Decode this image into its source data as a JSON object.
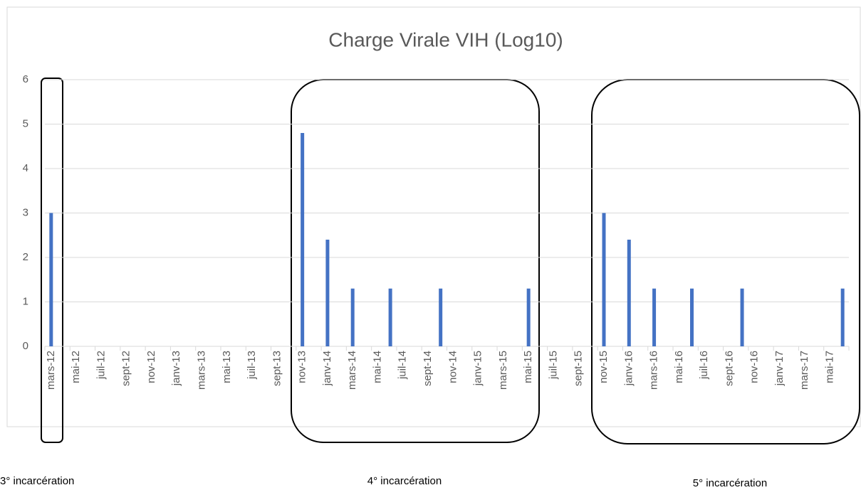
{
  "chart_data": {
    "type": "bar",
    "title": "Charge Virale VIH (Log10)",
    "categories": [
      "mars-12",
      null,
      "mai-12",
      null,
      "juil-12",
      null,
      "sept-12",
      null,
      "nov-12",
      null,
      "janv-13",
      null,
      "mars-13",
      null,
      "mai-13",
      null,
      "juil-13",
      null,
      "sept-13",
      null,
      "nov-13",
      null,
      "janv-14",
      null,
      "mars-14",
      null,
      "mai-14",
      null,
      "juil-14",
      null,
      "sept-14",
      null,
      "nov-14",
      null,
      "janv-15",
      null,
      "mars-15",
      null,
      "mai-15",
      null,
      "juil-15",
      null,
      "sept-15",
      null,
      "nov-15",
      null,
      "janv-16",
      null,
      "mars-16",
      null,
      "mai-16",
      null,
      "juil-16",
      null,
      "sept-16",
      null,
      "nov-16",
      null,
      "janv-17",
      null,
      "mars-17",
      null,
      "mai-17",
      null
    ],
    "values": [
      3,
      null,
      null,
      null,
      null,
      null,
      null,
      null,
      null,
      null,
      null,
      null,
      null,
      null,
      null,
      null,
      null,
      null,
      null,
      null,
      4.8,
      null,
      2.4,
      null,
      1.3,
      null,
      null,
      1.3,
      null,
      null,
      null,
      1.3,
      null,
      null,
      null,
      null,
      null,
      null,
      1.3,
      null,
      null,
      null,
      null,
      null,
      3,
      null,
      2.4,
      null,
      1.3,
      null,
      null,
      1.3,
      null,
      null,
      null,
      1.3,
      null,
      null,
      null,
      null,
      null,
      null,
      null,
      1.3
    ],
    "color": "#4472c4",
    "ylim": [
      0,
      6
    ],
    "yticks": [
      0,
      1,
      2,
      3,
      4,
      5,
      6
    ],
    "grid": true,
    "annotations": [
      "3° incarcération",
      "4° incarcération",
      "5° incarcération"
    ]
  }
}
